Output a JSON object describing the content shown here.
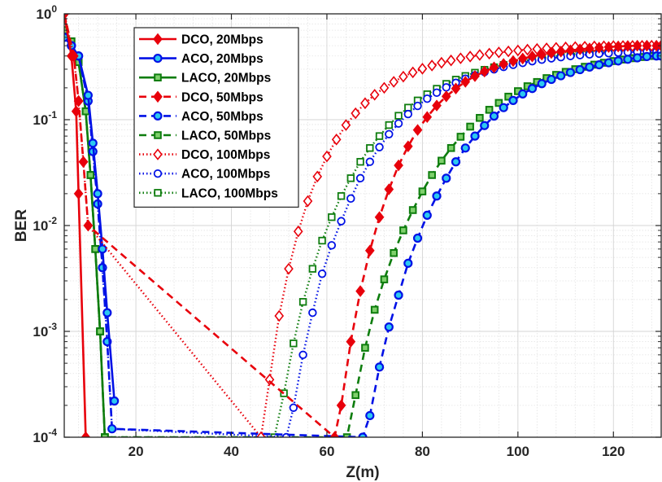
{
  "chart_data": {
    "type": "line",
    "xlabel": "Z(m)",
    "ylabel": "BER",
    "xlim": [
      5,
      130
    ],
    "ylim": [
      0.0001,
      1
    ],
    "yscale": "log",
    "grid": true,
    "minor_grid": true,
    "legend_position": "top-left",
    "x_ticks": [
      "20",
      "40",
      "60",
      "80",
      "100",
      "120"
    ],
    "y_ticks": [
      {
        "base": "10",
        "exp": "0"
      },
      {
        "base": "10",
        "exp": "-1"
      },
      {
        "base": "10",
        "exp": "-2"
      },
      {
        "base": "10",
        "exp": "-3"
      },
      {
        "base": "10",
        "exp": "-4"
      }
    ],
    "series": [
      {
        "name": "DCO, 20Mbps",
        "color": "#e8000b",
        "linestyle": "solid",
        "marker": "diamond",
        "marker_fill": true,
        "x": [
          5,
          6.5,
          7.5,
          8,
          9.5
        ],
        "y": [
          1.0,
          0.4,
          0.12,
          0.02,
          0.0001
        ]
      },
      {
        "name": "DCO, 50Mbps",
        "color": "#e8000b",
        "linestyle": "dashed",
        "marker": "diamond",
        "marker_fill": true,
        "x": [
          5,
          7,
          8,
          9,
          10,
          61.6,
          63,
          65,
          67,
          69,
          71,
          73,
          75,
          77,
          79,
          81,
          83,
          85,
          87,
          89,
          91,
          93,
          95,
          97,
          99,
          101,
          103,
          105,
          107,
          109,
          111,
          113,
          115,
          117,
          119,
          121,
          123,
          125,
          127,
          129,
          130
        ],
        "y": [
          1.0,
          0.4,
          0.15,
          0.04,
          0.01,
          0.0001,
          0.0002,
          0.0008,
          0.0024,
          0.0058,
          0.012,
          0.022,
          0.037,
          0.056,
          0.08,
          0.106,
          0.136,
          0.166,
          0.197,
          0.228,
          0.258,
          0.285,
          0.312,
          0.336,
          0.358,
          0.378,
          0.396,
          0.412,
          0.427,
          0.44,
          0.452,
          0.462,
          0.471,
          0.479,
          0.486,
          0.492,
          0.497,
          0.5,
          0.5,
          0.5,
          0.5
        ]
      },
      {
        "name": "DCO, 100Mbps",
        "color": "#e8000b",
        "linestyle": "dotted",
        "marker": "diamond",
        "marker_fill": false,
        "x": [
          5,
          7,
          8,
          9,
          10,
          46.2,
          48,
          50,
          52,
          54,
          56,
          58,
          60,
          62,
          64,
          66,
          68,
          70,
          72,
          74,
          76,
          78,
          80,
          82,
          84,
          86,
          88,
          90,
          92,
          94,
          96,
          98,
          100,
          102,
          104,
          106,
          108,
          110,
          112,
          114,
          116,
          118,
          120,
          122,
          124,
          126,
          128,
          130
        ],
        "y": [
          1.0,
          0.4,
          0.15,
          0.04,
          0.01,
          0.0001,
          0.00035,
          0.0014,
          0.0039,
          0.0088,
          0.017,
          0.029,
          0.045,
          0.065,
          0.089,
          0.115,
          0.143,
          0.172,
          0.2,
          0.228,
          0.255,
          0.28,
          0.303,
          0.325,
          0.345,
          0.363,
          0.38,
          0.395,
          0.409,
          0.421,
          0.432,
          0.442,
          0.451,
          0.459,
          0.466,
          0.472,
          0.477,
          0.482,
          0.486,
          0.489,
          0.492,
          0.494,
          0.496,
          0.497,
          0.498,
          0.499,
          0.5,
          0.5
        ]
      },
      {
        "name": "ACO, 20Mbps",
        "color": "#0011e6",
        "linestyle": "solid",
        "marker": "circle",
        "marker_fill": true,
        "x": [
          5,
          6.5,
          8,
          10,
          11,
          12,
          13,
          14,
          15.5
        ],
        "y": [
          0.6,
          0.5,
          0.4,
          0.17,
          0.06,
          0.02,
          0.006,
          0.0015,
          0.00022
        ]
      },
      {
        "name": "ACO, 50Mbps",
        "color": "#0011e6",
        "linestyle": "dashed",
        "marker": "circle",
        "marker_fill": true,
        "x": [
          5,
          6.5,
          8,
          10,
          11,
          12,
          13,
          14,
          15,
          67.5,
          69,
          71,
          73,
          75,
          77,
          79,
          81,
          83,
          85,
          87,
          89,
          91,
          93,
          95,
          97,
          99,
          101,
          103,
          105,
          107,
          109,
          111,
          113,
          115,
          117,
          119,
          121,
          123,
          125,
          127,
          129,
          130
        ],
        "y": [
          0.6,
          0.5,
          0.4,
          0.15,
          0.05,
          0.016,
          0.004,
          0.0008,
          0.00012,
          0.0001,
          0.00016,
          0.00046,
          0.0011,
          0.0022,
          0.0044,
          0.0076,
          0.0125,
          0.019,
          0.028,
          0.04,
          0.054,
          0.07,
          0.088,
          0.108,
          0.13,
          0.152,
          0.175,
          0.197,
          0.219,
          0.24,
          0.26,
          0.279,
          0.297,
          0.314,
          0.33,
          0.345,
          0.359,
          0.372,
          0.384,
          0.395,
          0.4,
          0.4
        ]
      },
      {
        "name": "ACO, 100Mbps",
        "color": "#0011e6",
        "linestyle": "dotted",
        "marker": "circle",
        "marker_fill": false,
        "x": [
          5,
          6.5,
          8,
          10,
          11,
          12,
          13,
          14,
          15,
          51.5,
          53,
          55,
          57,
          59,
          61,
          63,
          65,
          67,
          69,
          71,
          73,
          75,
          77,
          79,
          81,
          83,
          85,
          87,
          89,
          91,
          93,
          95,
          97,
          99,
          101,
          103,
          105,
          107,
          109,
          111,
          113,
          115,
          117,
          119,
          121,
          123,
          125,
          127,
          129,
          130
        ],
        "y": [
          0.6,
          0.5,
          0.4,
          0.15,
          0.05,
          0.016,
          0.004,
          0.0008,
          0.00012,
          0.0001,
          0.00019,
          0.0006,
          0.0015,
          0.0035,
          0.0065,
          0.011,
          0.018,
          0.028,
          0.04,
          0.055,
          0.073,
          0.092,
          0.113,
          0.135,
          0.158,
          0.18,
          0.202,
          0.223,
          0.244,
          0.263,
          0.282,
          0.299,
          0.315,
          0.33,
          0.344,
          0.357,
          0.369,
          0.38,
          0.39,
          0.399,
          0.407,
          0.414,
          0.42,
          0.425,
          0.43,
          0.434,
          0.437,
          0.44,
          0.44,
          0.44
        ]
      },
      {
        "name": "LACO, 20Mbps",
        "color": "#0e7d0e",
        "linestyle": "solid",
        "marker": "square",
        "marker_fill": true,
        "x": [
          5,
          6.5,
          8,
          9.5,
          10.5,
          11.5,
          12.5,
          13.5
        ],
        "y": [
          0.7,
          0.55,
          0.35,
          0.12,
          0.03,
          0.006,
          0.001,
          0.0001
        ]
      },
      {
        "name": "LACO, 50Mbps",
        "color": "#0e7d0e",
        "linestyle": "dashed",
        "marker": "square",
        "marker_fill": true,
        "x": [
          5,
          6.5,
          8,
          9.5,
          10.5,
          11.5,
          12.5,
          13.5,
          64.2,
          66,
          68,
          70,
          72,
          74,
          76,
          78,
          80,
          82,
          84,
          86,
          88,
          90,
          92,
          94,
          96,
          98,
          100,
          102,
          104,
          106,
          108,
          110,
          112,
          114,
          116,
          118,
          120,
          122,
          124,
          126,
          128,
          130
        ],
        "y": [
          0.7,
          0.55,
          0.35,
          0.12,
          0.03,
          0.006,
          0.001,
          0.0001,
          0.0001,
          0.00025,
          0.0007,
          0.0016,
          0.0031,
          0.0055,
          0.009,
          0.014,
          0.021,
          0.03,
          0.041,
          0.054,
          0.069,
          0.086,
          0.104,
          0.124,
          0.144,
          0.165,
          0.186,
          0.207,
          0.227,
          0.247,
          0.265,
          0.283,
          0.3,
          0.316,
          0.331,
          0.345,
          0.358,
          0.37,
          0.381,
          0.391,
          0.4,
          0.4
        ]
      },
      {
        "name": "LACO, 100Mbps",
        "color": "#0e7d0e",
        "linestyle": "dotted",
        "marker": "square",
        "marker_fill": false,
        "x": [
          5,
          6.5,
          8,
          9.5,
          10.5,
          11.5,
          12.5,
          13.5,
          49,
          51,
          53,
          55,
          57,
          59,
          61,
          63,
          65,
          67,
          69,
          71,
          73,
          75,
          77,
          79,
          81,
          83,
          85,
          87,
          89,
          91,
          93,
          95,
          97,
          99,
          101,
          103,
          105,
          107,
          109,
          111,
          113,
          115,
          117,
          119,
          121,
          123,
          125,
          127,
          129,
          130
        ],
        "y": [
          0.7,
          0.55,
          0.35,
          0.12,
          0.03,
          0.006,
          0.001,
          0.0001,
          0.0001,
          0.00026,
          0.00077,
          0.0019,
          0.0039,
          0.0072,
          0.012,
          0.019,
          0.028,
          0.04,
          0.054,
          0.07,
          0.089,
          0.109,
          0.13,
          0.152,
          0.174,
          0.196,
          0.218,
          0.239,
          0.259,
          0.278,
          0.296,
          0.313,
          0.329,
          0.344,
          0.358,
          0.371,
          0.383,
          0.394,
          0.404,
          0.413,
          0.421,
          0.428,
          0.435,
          0.441,
          0.446,
          0.45,
          0.454,
          0.457,
          0.46,
          0.46
        ]
      }
    ],
    "legend_order": [
      "DCO, 20Mbps",
      "ACO, 20Mbps",
      "LACO, 20Mbps",
      "DCO, 50Mbps",
      "ACO, 50Mbps",
      "LACO, 50Mbps",
      "DCO, 100Mbps",
      "ACO, 100Mbps",
      "LACO, 100Mbps"
    ]
  }
}
